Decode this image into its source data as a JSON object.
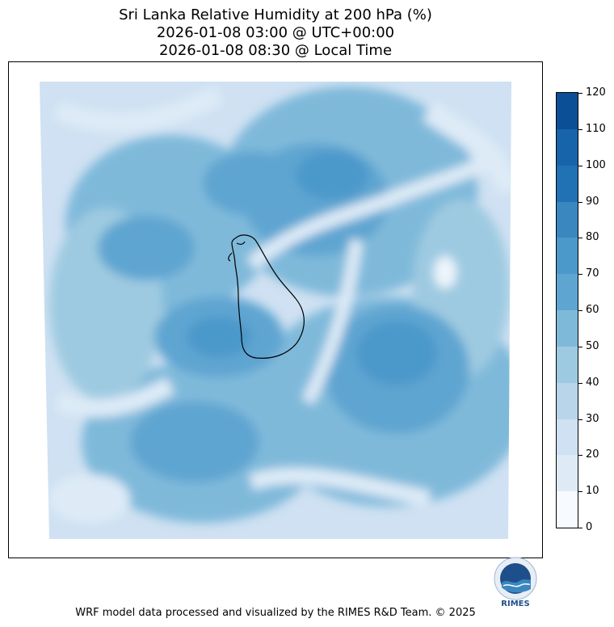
{
  "title": {
    "line1": "Sri Lanka Relative Humidity at 200 hPa (%)",
    "line2": "2026-01-08 03:00 @ UTC+00:00",
    "line3": "2026-01-08 08:30 @ Local Time"
  },
  "colorbar": {
    "ticks": [
      "0",
      "10",
      "20",
      "30",
      "40",
      "50",
      "60",
      "70",
      "80",
      "90",
      "100",
      "110",
      "120"
    ],
    "colors": [
      "#f7fbff",
      "#deebf7",
      "#cfe1f2",
      "#b8d5ea",
      "#9ecae1",
      "#7fb9da",
      "#5ea5d1",
      "#4b98ca",
      "#3a87c0",
      "#2171b5",
      "#1864ab",
      "#0b4f97",
      "#08306b"
    ]
  },
  "palette": {
    "bg_light": "#cfe1f2",
    "mid": "#7fb9da",
    "dark": "#4b98ca",
    "darker": "#3a87c0",
    "whiteish": "#eef5fb"
  },
  "logo": {
    "text": "RIMES"
  },
  "footer": "WRF model data processed and visualized by the RIMES R&D Team. © 2025"
}
